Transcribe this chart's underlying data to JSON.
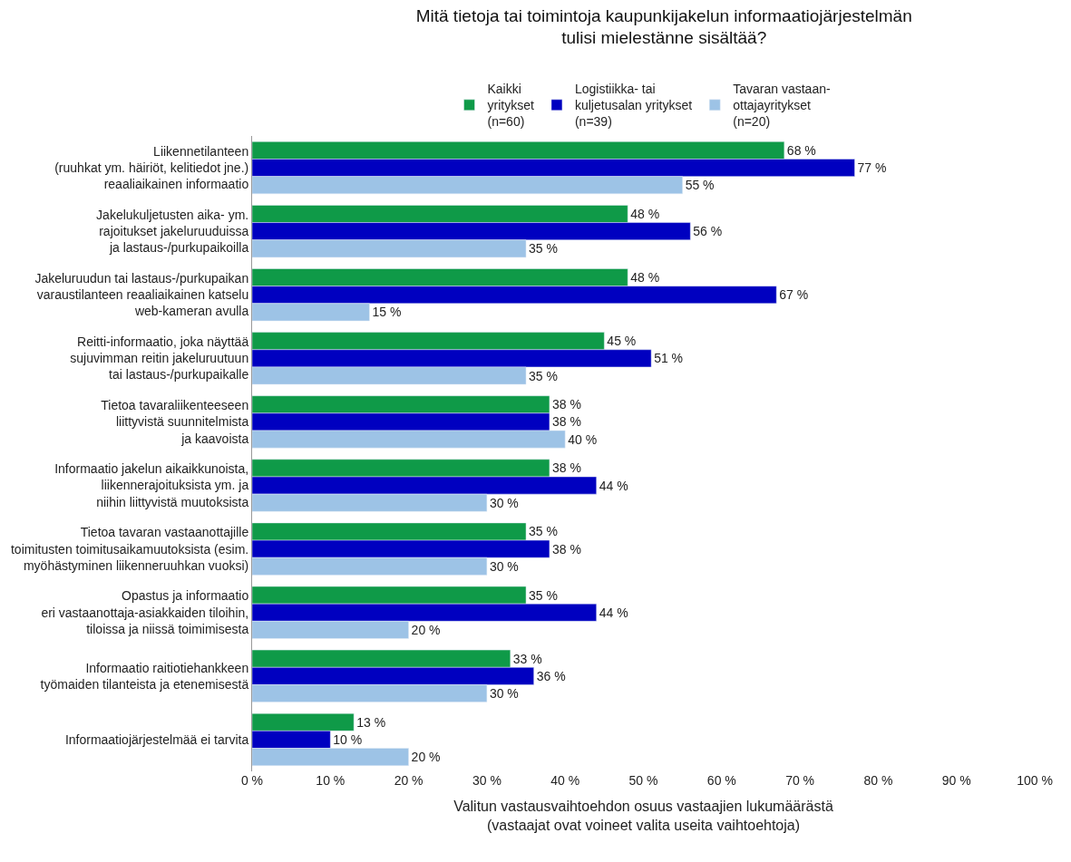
{
  "chart_data": {
    "type": "bar",
    "orientation": "horizontal",
    "title": "Mitä tietoja tai toimintoja kaupunkijakelun informaatiojärjestelmän\ntulisi mielestänne sisältää?",
    "xlabel": "Valitun vastausvaihtoehdon osuus vastaajien lukumäärästä\n(vastaajat ovat voineet valita useita vaihtoehtoja)",
    "categories": [
      "Liikennetilanteen\n(ruuhkat ym. häiriöt, kelitiedot jne.)\nreaaliaikainen informaatio",
      "Jakelukuljetusten aika- ym.\nrajoitukset jakeluruuduissa\nja lastaus-/purkupaikoilla",
      "Jakeluruudun tai lastaus-/purkupaikan\nvaraustilanteen reaaliaikainen katselu\nweb-kameran avulla",
      "Reitti-informaatio, joka näyttää\nsujuvimman reitin jakeluruutuun\ntai lastaus-/purkupaikalle",
      "Tietoa tavaraliikenteeseen\nliittyvistä suunnitelmista\nja kaavoista",
      "Informaatio jakelun aikaikkunoista,\nliikennerajoituksista ym. ja\nniihin liittyvistä muutoksista",
      "Tietoa tavaran vastaanottajille\ntoimitusten toimitusaikamuutoksista (esim.\nmyöhästyminen liikenneruuhkan vuoksi)",
      "Opastus ja informaatio\neri vastaanottaja-asiakkaiden tiloihin,\ntiloissa ja niissä toimimisesta",
      "Informaatio raitiotiehankkeen\ntyömaiden tilanteista ja etenemisestä",
      "Informaatiojärjestelmää ei tarvita"
    ],
    "series": [
      {
        "name": "Kaikki\nyritykset\n(n=60)",
        "color": "#0f9a48",
        "values": [
          68,
          48,
          48,
          45,
          38,
          38,
          35,
          35,
          33,
          13
        ],
        "value_labels": [
          "68 %",
          "48 %",
          "48 %",
          "45 %",
          "38 %",
          "38 %",
          "35 %",
          "35 %",
          "33 %",
          "13 %"
        ]
      },
      {
        "name": "Logistiikka- tai\nkuljetusalan yritykset\n(n=39)",
        "color": "#0000c0",
        "values": [
          77,
          56,
          67,
          51,
          38,
          44,
          38,
          44,
          36,
          10
        ],
        "value_labels": [
          "77 %",
          "56 %",
          "67 %",
          "51 %",
          "38 %",
          "44 %",
          "38 %",
          "44 %",
          "36 %",
          "10 %"
        ]
      },
      {
        "name": "Tavaran vastaan-\nottajayritykset\n(n=20)",
        "color": "#9dc3e6",
        "values": [
          55,
          35,
          15,
          35,
          40,
          30,
          30,
          20,
          30,
          20
        ],
        "value_labels": [
          "55 %",
          "35 %",
          "15 %",
          "35 %",
          "40 %",
          "30 %",
          "30 %",
          "20 %",
          "30 %",
          "20 %"
        ]
      }
    ],
    "xlim": [
      0,
      100
    ],
    "xticks": [
      {
        "value": 0,
        "label": "0 %"
      },
      {
        "value": 10,
        "label": "10 %"
      },
      {
        "value": 20,
        "label": "20 %"
      },
      {
        "value": 30,
        "label": "30 %"
      },
      {
        "value": 40,
        "label": "40 %"
      },
      {
        "value": 50,
        "label": "50 %"
      },
      {
        "value": 60,
        "label": "60 %"
      },
      {
        "value": 70,
        "label": "70 %"
      },
      {
        "value": 80,
        "label": "80 %"
      },
      {
        "value": 90,
        "label": "90 %"
      },
      {
        "value": 100,
        "label": "100 %"
      }
    ],
    "legend": "top",
    "grid": false
  }
}
